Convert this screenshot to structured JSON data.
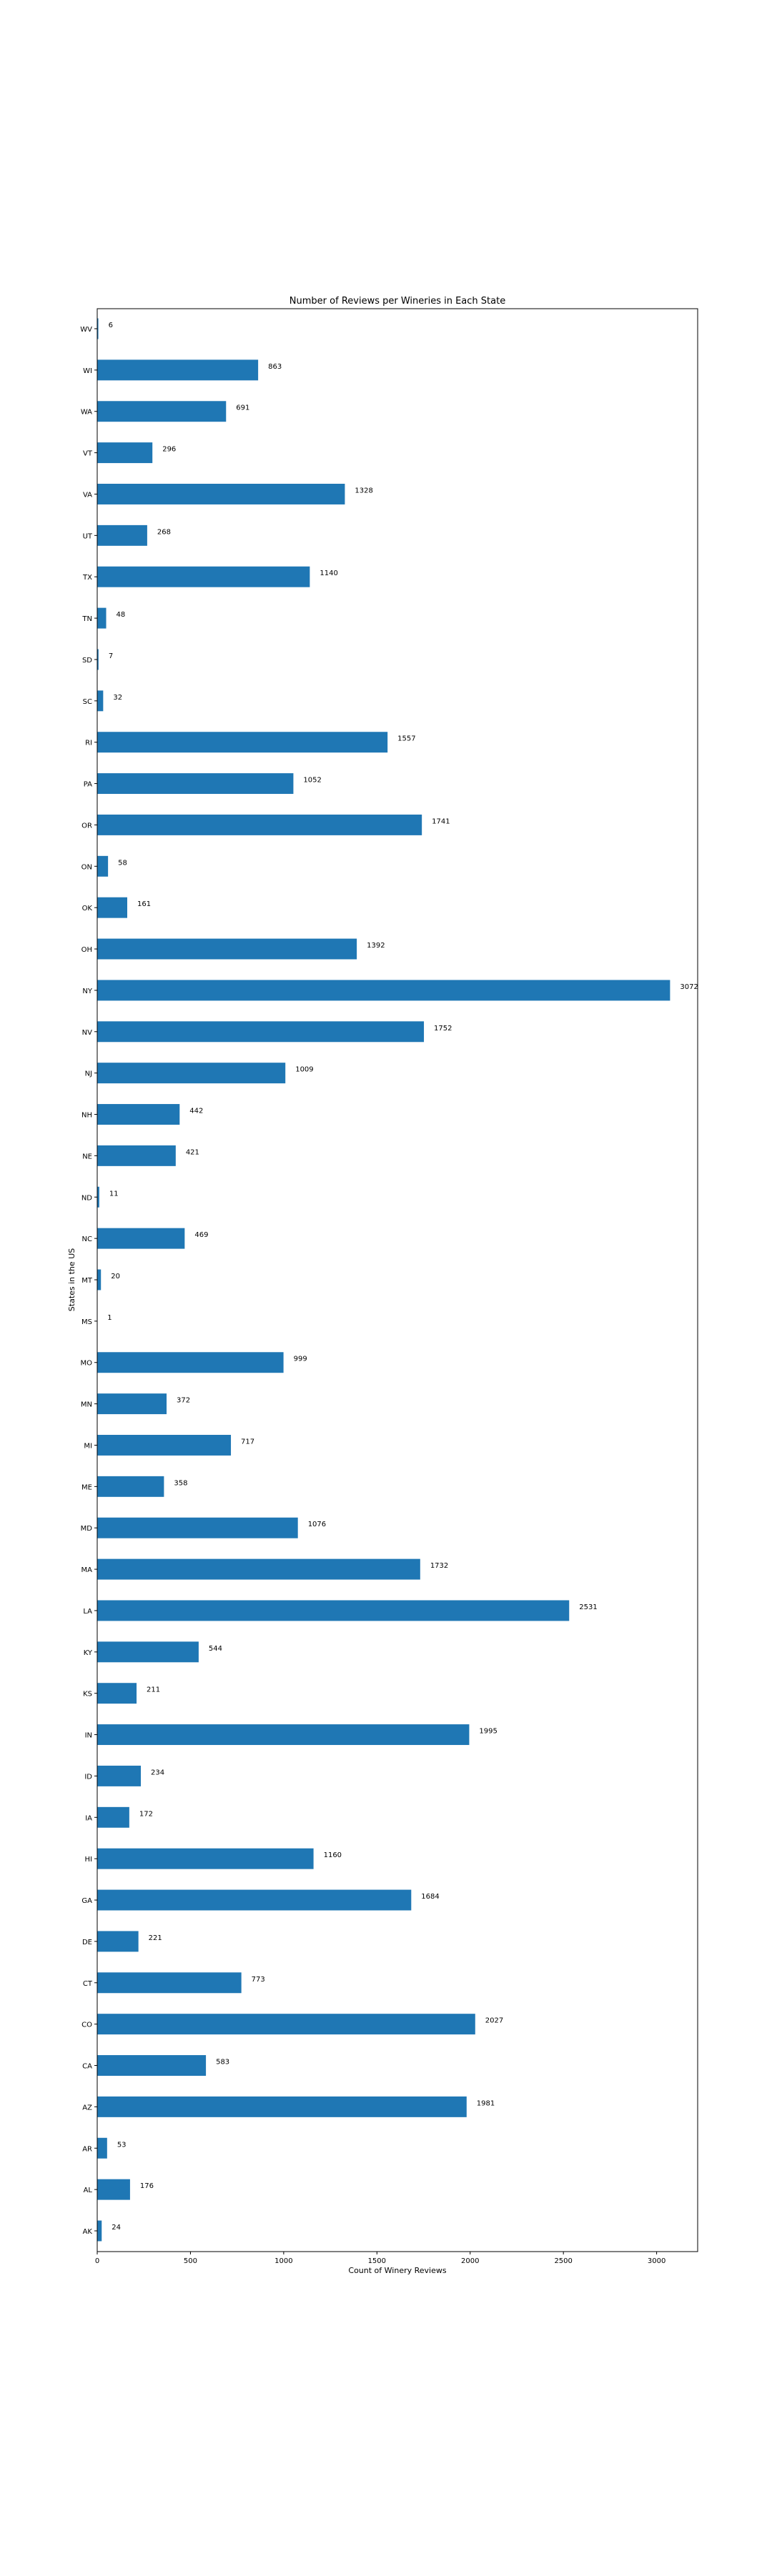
{
  "chart_data": {
    "type": "bar",
    "orientation": "horizontal",
    "title": "Number of Reviews per Wineries in Each State",
    "xlabel": "Count of Winery Reviews",
    "ylabel": "States in the US",
    "xlim": [
      0,
      3220
    ],
    "xticks": [
      0,
      500,
      1000,
      1500,
      2000,
      2500,
      3000
    ],
    "grid": false,
    "bar_color": "#1f77b4",
    "categories": [
      "WV",
      "WI",
      "WA",
      "VT",
      "VA",
      "UT",
      "TX",
      "TN",
      "SD",
      "SC",
      "RI",
      "PA",
      "OR",
      "ON",
      "OK",
      "OH",
      "NY",
      "NV",
      "NJ",
      "NH",
      "NE",
      "ND",
      "NC",
      "MT",
      "MS",
      "MO",
      "MN",
      "MI",
      "ME",
      "MD",
      "MA",
      "LA",
      "KY",
      "KS",
      "IN",
      "ID",
      "IA",
      "HI",
      "GA",
      "DE",
      "CT",
      "CO",
      "CA",
      "AZ",
      "AR",
      "AL",
      "AK"
    ],
    "values": [
      6,
      863,
      691,
      296,
      1328,
      268,
      1140,
      48,
      7,
      32,
      1557,
      1052,
      1741,
      58,
      161,
      1392,
      3072,
      1752,
      1009,
      442,
      421,
      11,
      469,
      20,
      1,
      999,
      372,
      717,
      358,
      1076,
      1732,
      2531,
      544,
      211,
      1995,
      234,
      172,
      1160,
      1684,
      221,
      773,
      2027,
      583,
      1981,
      53,
      176,
      24
    ]
  }
}
